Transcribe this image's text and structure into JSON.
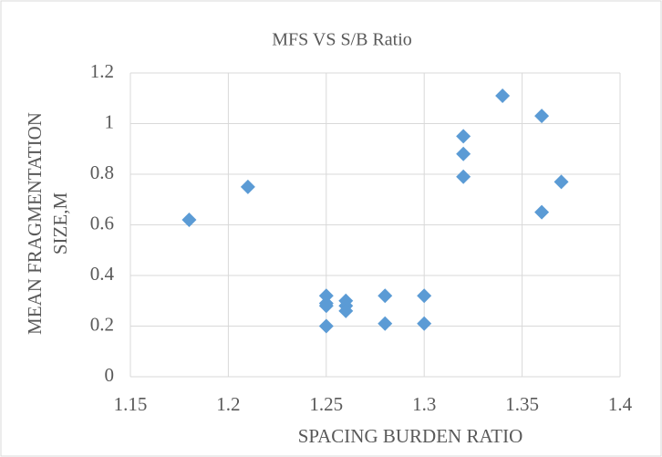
{
  "chart_data": {
    "type": "scatter",
    "title": "MFS VS S/B Ratio",
    "xlabel": "SPACING BURDEN RATIO",
    "ylabel": [
      "MEAN FRAGMENTATION",
      "SIZE,M"
    ],
    "color": "#5b9bd5",
    "grid": true,
    "xlim": [
      1.15,
      1.4
    ],
    "xticks": [
      1.15,
      1.2,
      1.25,
      1.3,
      1.35,
      1.4
    ],
    "ylim": [
      0,
      1.2
    ],
    "yticks": [
      0,
      0.2,
      0.4,
      0.6,
      0.8,
      1,
      1.2
    ],
    "x": [
      1.18,
      1.21,
      1.25,
      1.25,
      1.25,
      1.25,
      1.26,
      1.26,
      1.26,
      1.28,
      1.28,
      1.3,
      1.3,
      1.32,
      1.32,
      1.32,
      1.34,
      1.36,
      1.36,
      1.37
    ],
    "values": [
      0.62,
      0.75,
      0.32,
      0.29,
      0.28,
      0.2,
      0.3,
      0.28,
      0.26,
      0.32,
      0.21,
      0.32,
      0.21,
      0.95,
      0.88,
      0.79,
      1.11,
      1.03,
      0.65,
      0.77
    ]
  }
}
